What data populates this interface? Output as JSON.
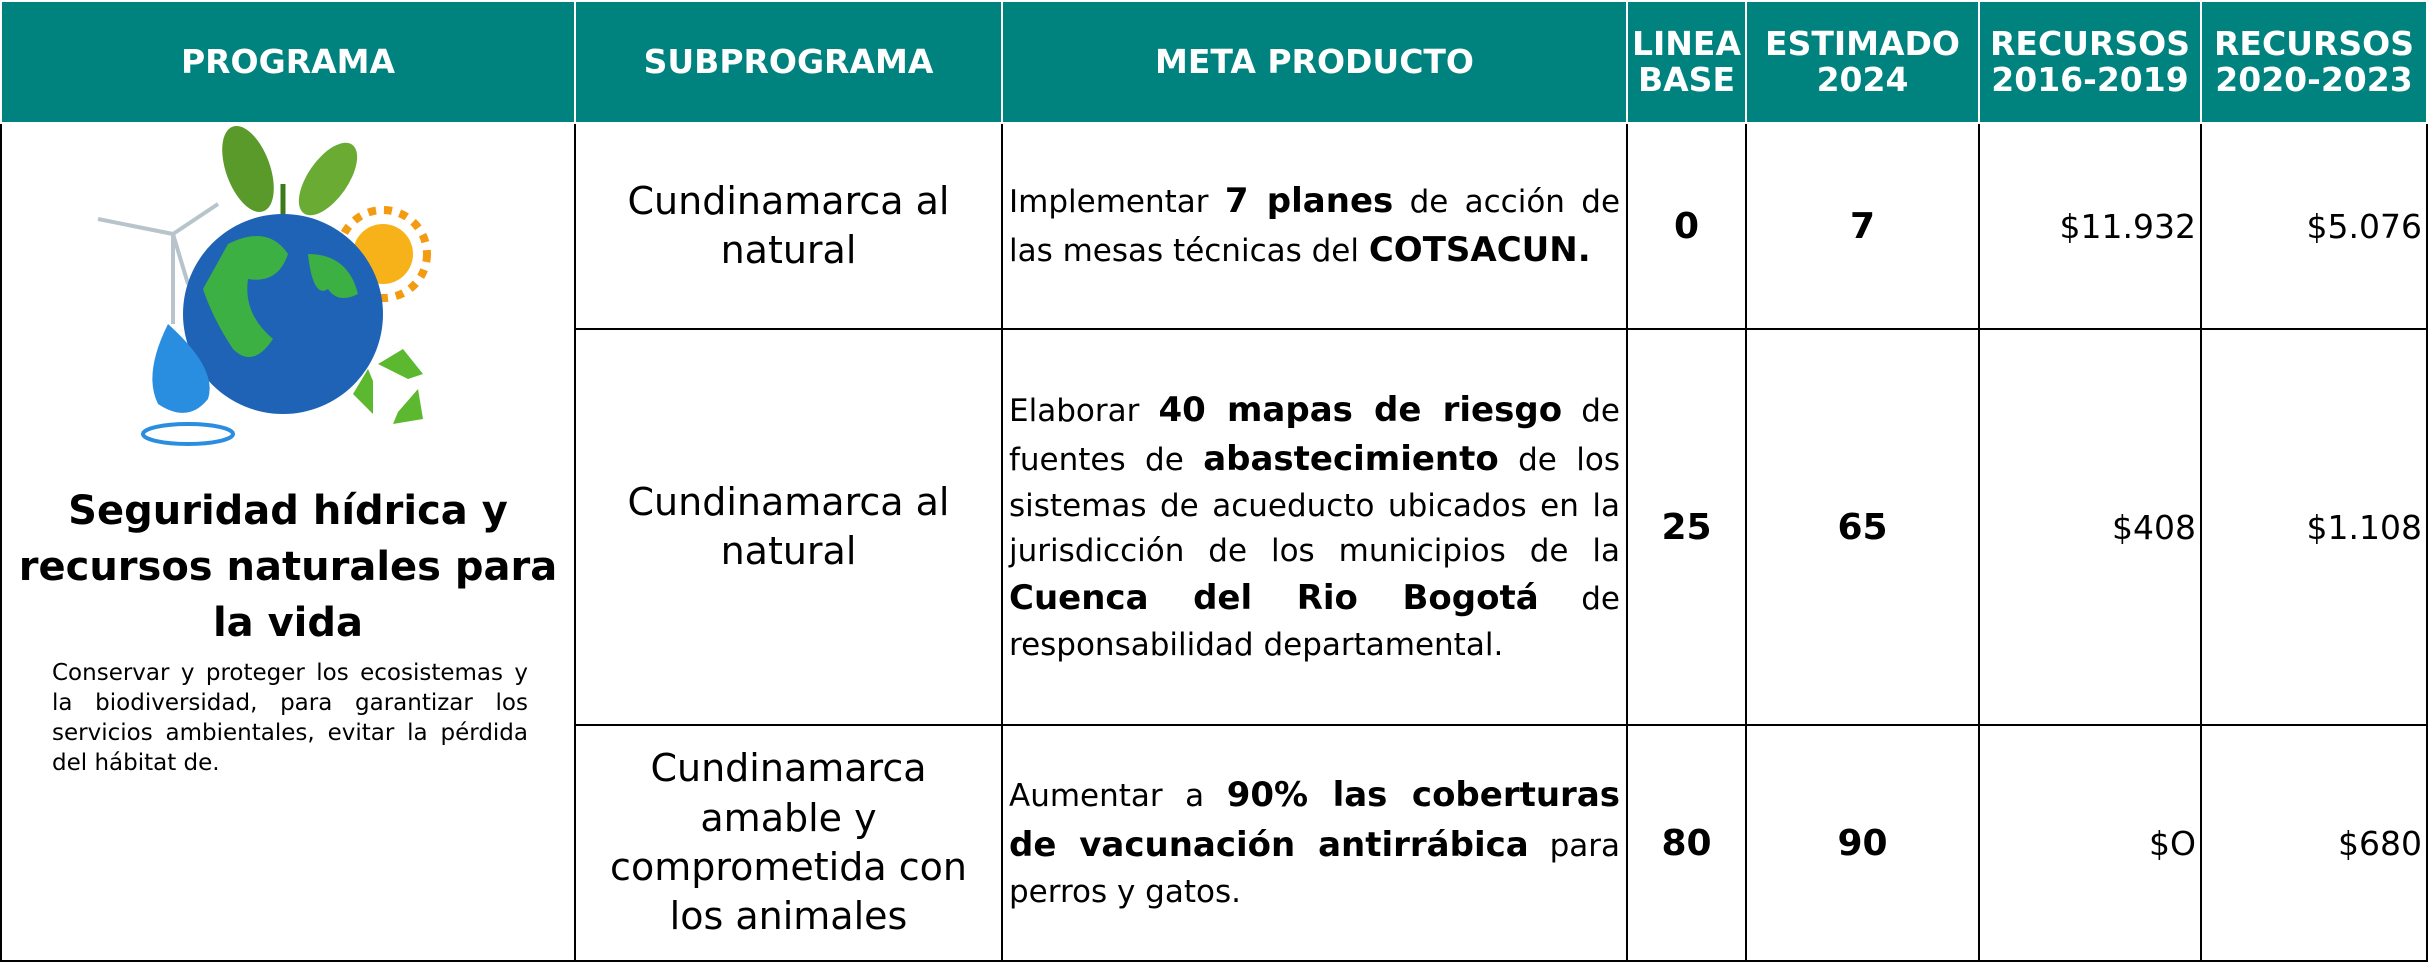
{
  "header": {
    "columns": [
      "PROGRAMA",
      "SUBPROGRAMA",
      "META  PRODUCTO",
      "LINEA BASE",
      "ESTIMADO 2024",
      "RECURSOS 2016-2019",
      "RECURSOS 2020-2023"
    ]
  },
  "program": {
    "title": "Seguridad hídrica y recursos naturales para la vida",
    "description": "Conservar y proteger los ecosistemas y la biodiversidad, para garantizar los servicios ambientales, evitar la pérdida del hábitat de."
  },
  "rows": [
    {
      "subprograma": "Cundinamarca al natural",
      "meta": [
        {
          "text": "Implementar ",
          "bold": false
        },
        {
          "text": "7 planes",
          "bold": true
        },
        {
          "text": " de acción de las mesas técnicas del ",
          "bold": false
        },
        {
          "text": "COTSACUN.",
          "bold": true
        }
      ],
      "linea_base": "0",
      "estimado_2024": "7",
      "recursos_2016_2019": "$11.932",
      "recursos_2020_2023": "$5.076"
    },
    {
      "subprograma": "Cundinamarca al natural",
      "meta": [
        {
          "text": "Elaborar ",
          "bold": false
        },
        {
          "text": "40 mapas de riesgo",
          "bold": true
        },
        {
          "text": " de fuentes de ",
          "bold": false
        },
        {
          "text": "abastecimiento",
          "bold": true
        },
        {
          "text": " de los sistemas de acueducto ubicados en la jurisdicción de los municipios de la ",
          "bold": false
        },
        {
          "text": "Cuenca del Rio Bogotá",
          "bold": true
        },
        {
          "text": " de responsabilidad departamental.",
          "bold": false
        }
      ],
      "linea_base": "25",
      "estimado_2024": "65",
      "recursos_2016_2019": "$408",
      "recursos_2020_2023": "$1.108"
    },
    {
      "subprograma": "Cundinamarca amable y comprometida con los animales",
      "meta": [
        {
          "text": "Aumentar a ",
          "bold": false
        },
        {
          "text": "90% las coberturas de vacunación antirrábica",
          "bold": true
        },
        {
          "text": " para perros y gatos.",
          "bold": false
        }
      ],
      "linea_base": "80",
      "estimado_2024": "90",
      "recursos_2016_2019": "$O",
      "recursos_2020_2023": "$680"
    }
  ]
}
